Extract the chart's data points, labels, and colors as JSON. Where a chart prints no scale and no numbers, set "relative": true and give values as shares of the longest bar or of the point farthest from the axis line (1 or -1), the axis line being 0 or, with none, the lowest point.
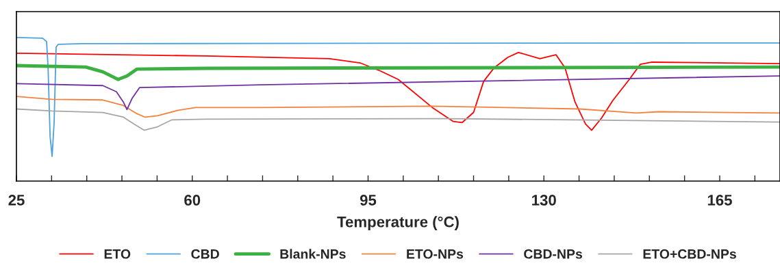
{
  "chart_data": {
    "type": "line",
    "relative": true,
    "xlabel": "Temperature (°C)",
    "xlim": [
      25,
      177
    ],
    "xticks": [
      25,
      {
        "value": 32,
        "label": null
      },
      {
        "value": 39,
        "label": null
      },
      {
        "value": 46,
        "label": null
      },
      {
        "value": 53,
        "label": null
      },
      60,
      {
        "value": 67,
        "label": null
      },
      {
        "value": 74,
        "label": null
      },
      {
        "value": 81,
        "label": null
      },
      {
        "value": 88,
        "label": null
      },
      95,
      {
        "value": 102,
        "label": null
      },
      {
        "value": 109,
        "label": null
      },
      {
        "value": 116,
        "label": null
      },
      {
        "value": 123,
        "label": null
      },
      130,
      {
        "value": 137,
        "label": null
      },
      {
        "value": 144,
        "label": null
      },
      {
        "value": 151,
        "label": null
      },
      {
        "value": 158,
        "label": null
      },
      165,
      {
        "value": 172,
        "label": null
      }
    ],
    "legend": "bottom",
    "grid": false,
    "marker": "none",
    "line_style": "solid",
    "series": [
      {
        "name": "ETO",
        "color": "#ff0000",
        "x": [
          25,
          62.7,
          87.3,
          93.4,
          97.5,
          101.0,
          107.8,
          111.9,
          113.7,
          116.0,
          118.0,
          120.1,
          122.8,
          124.9,
          125.5,
          129.2,
          132.4,
          134.2,
          136.2,
          138.3,
          139.5,
          141.5,
          143.7,
          147.0,
          149.2,
          151.5,
          177
        ],
        "values": [
          0.89,
          0.871,
          0.852,
          0.823,
          0.766,
          0.708,
          0.512,
          0.416,
          0.407,
          0.478,
          0.694,
          0.789,
          0.861,
          0.895,
          0.89,
          0.852,
          0.88,
          0.789,
          0.55,
          0.397,
          0.354,
          0.44,
          0.56,
          0.708,
          0.813,
          0.828,
          0.818
        ]
      },
      {
        "name": "CBD",
        "color": "#4aa3df",
        "x": [
          25,
          30.2,
          31.0,
          31.3,
          31.7,
          32.1,
          32.5,
          32.9,
          33.3,
          38.1,
          177
        ],
        "values": [
          1.0,
          0.995,
          0.971,
          0.789,
          0.311,
          0.172,
          0.407,
          0.933,
          0.952,
          0.957,
          0.962
        ]
      },
      {
        "name": "Blank-NPs",
        "color": "#3cb043",
        "x": [
          25,
          38.8,
          42.2,
          45.2,
          47.0,
          49.0,
          62.7,
          177
        ],
        "values": [
          0.804,
          0.794,
          0.761,
          0.708,
          0.732,
          0.78,
          0.785,
          0.794
        ]
      },
      {
        "name": "ETO-NPs",
        "color": "#f5813f",
        "x": [
          25,
          32.0,
          42.2,
          46.3,
          49.0,
          50.6,
          53.1,
          57.2,
          60.7,
          73.6,
          107.8,
          137.2,
          148.4,
          152.9,
          177
        ],
        "values": [
          0.589,
          0.569,
          0.565,
          0.526,
          0.469,
          0.445,
          0.455,
          0.493,
          0.512,
          0.512,
          0.522,
          0.502,
          0.474,
          0.483,
          0.474
        ]
      },
      {
        "name": "CBD-NPs",
        "color": "#7030a0",
        "x": [
          25,
          42.2,
          44.9,
          46.3,
          47.0,
          48.0,
          49.5,
          73.6,
          177
        ],
        "values": [
          0.679,
          0.665,
          0.622,
          0.55,
          0.498,
          0.574,
          0.651,
          0.67,
          0.732
        ]
      },
      {
        "name": "ETO+CBD-NPs",
        "color": "#a6a6a6",
        "x": [
          25,
          32.0,
          42.2,
          46.3,
          48.4,
          50.4,
          53.1,
          55.9,
          62.7,
          110.5,
          177
        ],
        "values": [
          0.502,
          0.488,
          0.478,
          0.445,
          0.397,
          0.354,
          0.378,
          0.426,
          0.431,
          0.435,
          0.411
        ]
      }
    ]
  }
}
